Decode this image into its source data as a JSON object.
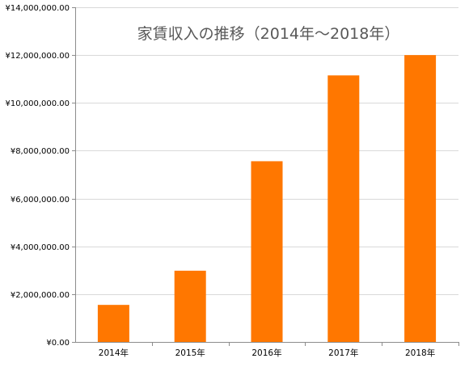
{
  "chart_data": {
    "type": "bar",
    "title": "家賃収入の推移（2014年～2018年）",
    "xlabel": "",
    "ylabel": "",
    "categories": [
      "2014年",
      "2015年",
      "2016年",
      "2017年",
      "2018年"
    ],
    "values": [
      1550000,
      2980000,
      7560000,
      11150000,
      12000000
    ],
    "ylim": [
      0,
      14000000
    ],
    "y_ticks": [
      0,
      2000000,
      4000000,
      6000000,
      8000000,
      10000000,
      12000000,
      14000000
    ],
    "y_tick_labels": [
      "¥0.00",
      "¥2,000,000.00",
      "¥4,000,000.00",
      "¥6,000,000.00",
      "¥8,000,000.00",
      "¥10,000,000.00",
      "¥12,000,000.00",
      "¥14,000,000.00"
    ],
    "grid": true,
    "legend": "none",
    "bar_color": "#ff7700",
    "title_color": "#595959",
    "grid_color": "#d9d9d9",
    "axis_color": "#8c8c8c"
  }
}
